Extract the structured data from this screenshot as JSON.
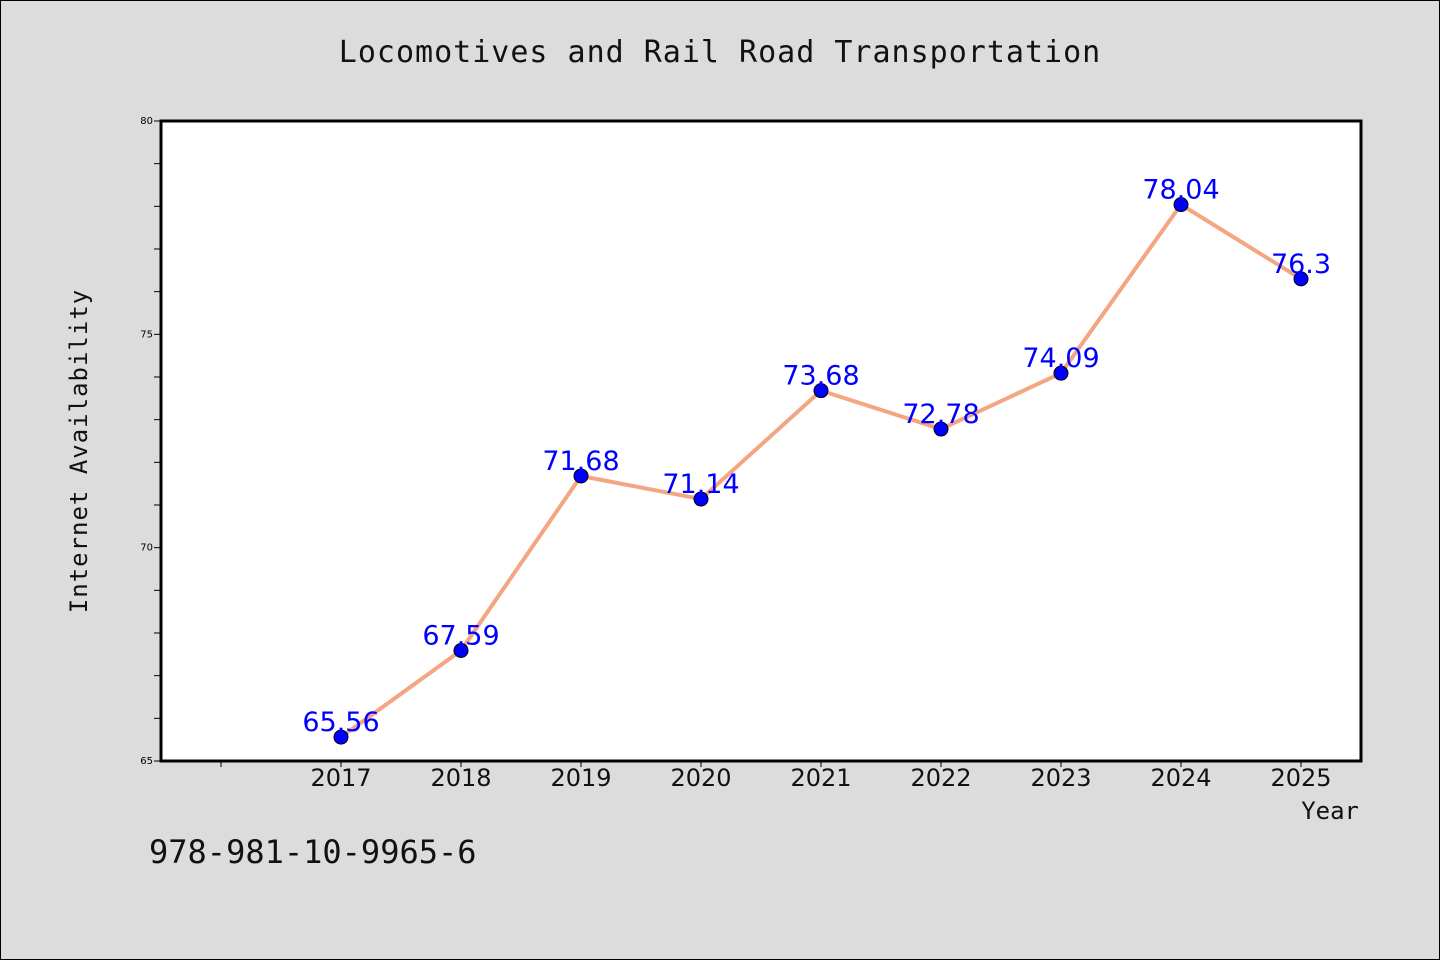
{
  "chart_data": {
    "type": "line",
    "title": "Locomotives and Rail Road Transportation",
    "xlabel": "Year",
    "ylabel": "Internet Availability",
    "categories": [
      "2017",
      "2018",
      "2019",
      "2020",
      "2021",
      "2022",
      "2023",
      "2024",
      "2025"
    ],
    "series": [
      {
        "values": [
          65.56,
          67.59,
          71.68,
          71.14,
          73.68,
          72.78,
          74.09,
          78.04,
          76.3
        ],
        "labels": [
          "65.56",
          "67.59",
          "71.68",
          "71.14",
          "73.68",
          "72.78",
          "74.09",
          "78.04",
          "76.3"
        ],
        "line_color": "#f4a582",
        "marker_color": "#0000ff",
        "label_color": "#0000ff"
      }
    ],
    "ylim": [
      65,
      80
    ],
    "yticks": [
      "65",
      "70",
      "75",
      "80"
    ],
    "grid": false,
    "legend": "none"
  },
  "footer_text": "978-981-10-9965-6",
  "colors": {
    "background": "#dcdcdc",
    "plot_background": "#ffffff"
  }
}
